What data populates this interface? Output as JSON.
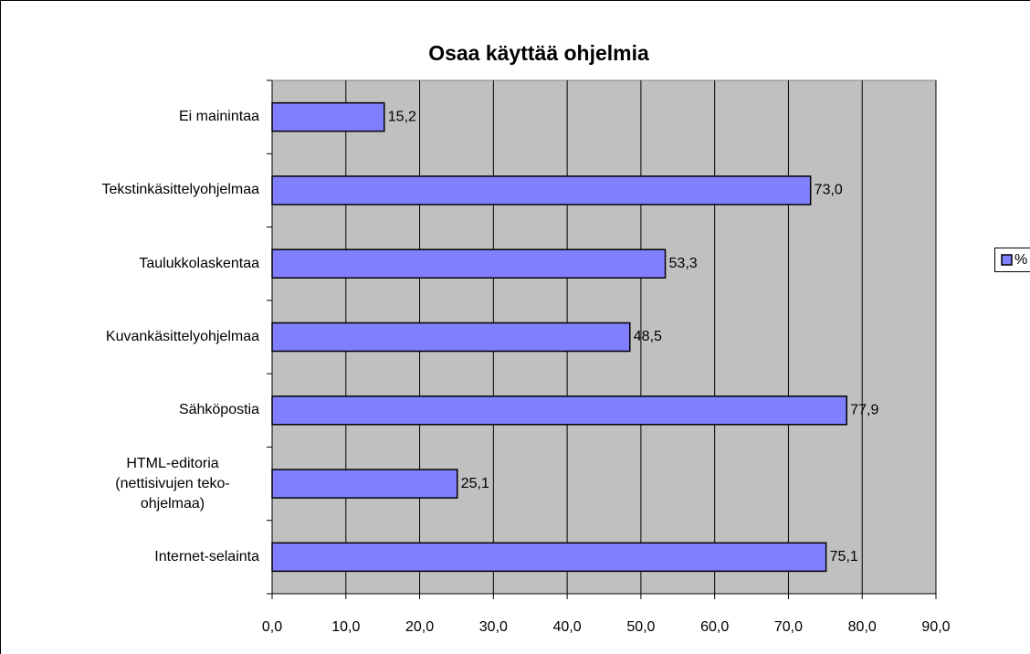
{
  "chart_data": {
    "type": "bar",
    "orientation": "horizontal",
    "title": "Osaa käyttää ohjelmia",
    "categories": [
      "Ei mainintaa",
      "Tekstinkäsittelyohjelmaa",
      "Taulukkolaskentaa",
      "Kuvankäsittelyohjelmaa",
      "Sähköpostia",
      "HTML-editoria (nettisivujen teko-ohjelmaa)",
      "Internet-selainta"
    ],
    "series": [
      {
        "name": "%",
        "color": "#8080ff",
        "values": [
          15.2,
          73.0,
          53.3,
          48.5,
          77.9,
          25.1,
          75.1
        ],
        "value_labels": [
          "15,2",
          "73,0",
          "53,3",
          "48,5",
          "77,9",
          "25,1",
          "75,1"
        ]
      }
    ],
    "xlim": [
      0,
      90
    ],
    "xticks": [
      {
        "value": 0,
        "label": "0,0"
      },
      {
        "value": 10,
        "label": "10,0"
      },
      {
        "value": 20,
        "label": "20,0"
      },
      {
        "value": 30,
        "label": "30,0"
      },
      {
        "value": 40,
        "label": "40,0"
      },
      {
        "value": 50,
        "label": "50,0"
      },
      {
        "value": 60,
        "label": "60,0"
      },
      {
        "value": 70,
        "label": "70,0"
      },
      {
        "value": 80,
        "label": "80,0"
      },
      {
        "value": 90,
        "label": "90,0"
      }
    ],
    "grid": true,
    "legend": "right"
  }
}
